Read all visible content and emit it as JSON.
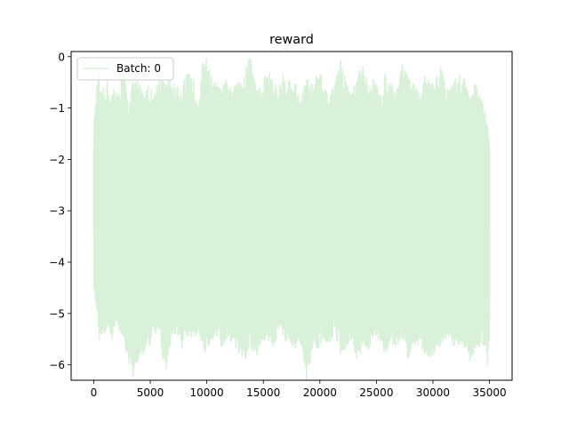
{
  "chart_data": {
    "type": "line",
    "title": "reward",
    "xlabel": "",
    "ylabel": "",
    "xlim": [
      -2000,
      37000
    ],
    "ylim": [
      -6.3,
      0.1
    ],
    "x_ticks": [
      0,
      5000,
      10000,
      15000,
      20000,
      25000,
      30000,
      35000
    ],
    "x_tick_labels": [
      "0",
      "5000",
      "10000",
      "15000",
      "20000",
      "25000",
      "30000",
      "35000"
    ],
    "y_ticks": [
      0,
      -1,
      -2,
      -3,
      -4,
      -5,
      -6
    ],
    "y_tick_labels": [
      "0",
      "−1",
      "−2",
      "−3",
      "−4",
      "−5",
      "−6"
    ],
    "grid": false,
    "legend": {
      "placement": "upper-left",
      "entries": [
        "Batch: 0"
      ]
    },
    "series": [
      {
        "name": "Batch: 0",
        "color": "#d9f0d9",
        "x_start": 0,
        "x_end": 35000,
        "mean": -3.1,
        "typical_range": [
          -4.9,
          -1.3
        ],
        "max": -0.3,
        "min": -6.0,
        "x": [
          0,
          300,
          400,
          600,
          900,
          1200,
          1500,
          1800,
          2200,
          2600,
          3000,
          3400,
          3800,
          4300,
          4800,
          5300,
          5800,
          6300,
          6800,
          7300,
          7800,
          8300,
          8800,
          9300,
          9800,
          10300,
          10800,
          11300,
          11800,
          12300,
          12800,
          13300,
          13800,
          14300,
          14800,
          15300,
          15800,
          16300,
          16800,
          17300,
          17800,
          18300,
          18800,
          19300,
          19800,
          20300,
          20800,
          21300,
          21800,
          22300,
          22800,
          23300,
          23800,
          24300,
          24800,
          25300,
          25800,
          26300,
          26800,
          27300,
          27800,
          28300,
          28800,
          29300,
          29800,
          30300,
          30800,
          31300,
          31800,
          32300,
          32800,
          33300,
          33800,
          34300,
          34800,
          35000
        ],
        "upper": [
          -1.8,
          -1.0,
          -0.4,
          -1.2,
          -1.1,
          -0.9,
          -1.3,
          -1.0,
          -1.2,
          -0.6,
          -1.3,
          -1.0,
          -0.9,
          -1.1,
          -1.0,
          -1.2,
          -0.8,
          -1.0,
          -0.9,
          -1.1,
          -1.0,
          -0.8,
          -0.9,
          -1.2,
          -0.3,
          -0.8,
          -1.0,
          -1.1,
          -0.9,
          -1.2,
          -0.7,
          -0.9,
          -0.3,
          -1.0,
          -1.1,
          -0.7,
          -0.9,
          -1.1,
          -0.8,
          -0.9,
          -1.0,
          -1.2,
          -0.9,
          -1.0,
          -0.8,
          -0.9,
          -1.3,
          -1.0,
          -0.5,
          -0.9,
          -1.1,
          -0.9,
          -0.6,
          -1.0,
          -0.9,
          -1.2,
          -0.8,
          -1.0,
          -1.1,
          -0.5,
          -0.9,
          -1.0,
          -1.2,
          -0.8,
          -1.0,
          -0.9,
          -0.6,
          -1.1,
          -1.0,
          -0.8,
          -0.9,
          -1.1,
          -1.0,
          -1.3,
          -1.7,
          -2.1
        ],
        "lower": [
          -4.2,
          -4.7,
          -5.2,
          -5.0,
          -5.1,
          -5.0,
          -5.2,
          -5.0,
          -4.9,
          -5.2,
          -5.5,
          -5.9,
          -5.6,
          -5.4,
          -5.3,
          -5.1,
          -5.0,
          -5.8,
          -5.2,
          -5.0,
          -5.3,
          -5.1,
          -5.2,
          -5.0,
          -5.4,
          -5.2,
          -5.0,
          -5.3,
          -5.1,
          -5.2,
          -5.4,
          -5.6,
          -5.3,
          -5.5,
          -5.2,
          -5.1,
          -5.3,
          -5.0,
          -5.1,
          -5.2,
          -5.3,
          -5.2,
          -6.0,
          -5.4,
          -5.3,
          -5.1,
          -5.2,
          -5.0,
          -5.4,
          -5.3,
          -5.1,
          -5.6,
          -5.2,
          -5.3,
          -5.1,
          -5.2,
          -5.4,
          -5.2,
          -5.3,
          -5.1,
          -5.5,
          -5.3,
          -5.2,
          -5.4,
          -5.5,
          -5.3,
          -5.2,
          -5.1,
          -5.3,
          -5.2,
          -5.4,
          -5.6,
          -5.3,
          -5.2,
          -5.6,
          -5.0
        ]
      }
    ]
  }
}
